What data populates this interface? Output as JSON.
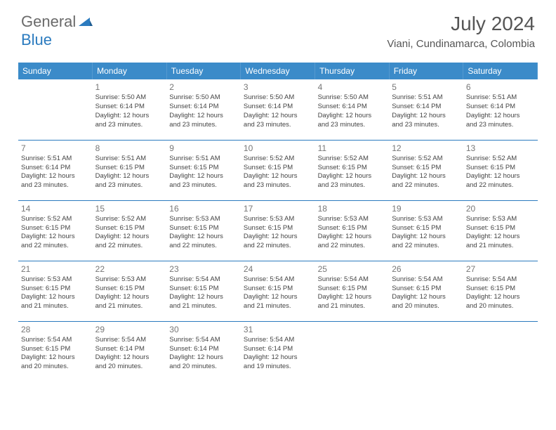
{
  "logo": {
    "word1": "General",
    "word2": "Blue"
  },
  "title": "July 2024",
  "location": "Viani, Cundinamarca, Colombia",
  "colors": {
    "header_bg": "#3b8bc9",
    "border": "#2b7bbf",
    "logo_gray": "#6a6a6a",
    "logo_blue": "#2b7bbf",
    "text": "#444"
  },
  "days_of_week": [
    "Sunday",
    "Monday",
    "Tuesday",
    "Wednesday",
    "Thursday",
    "Friday",
    "Saturday"
  ],
  "weeks": [
    [
      null,
      {
        "n": "1",
        "sr": "Sunrise: 5:50 AM",
        "ss": "Sunset: 6:14 PM",
        "dl1": "Daylight: 12 hours",
        "dl2": "and 23 minutes."
      },
      {
        "n": "2",
        "sr": "Sunrise: 5:50 AM",
        "ss": "Sunset: 6:14 PM",
        "dl1": "Daylight: 12 hours",
        "dl2": "and 23 minutes."
      },
      {
        "n": "3",
        "sr": "Sunrise: 5:50 AM",
        "ss": "Sunset: 6:14 PM",
        "dl1": "Daylight: 12 hours",
        "dl2": "and 23 minutes."
      },
      {
        "n": "4",
        "sr": "Sunrise: 5:50 AM",
        "ss": "Sunset: 6:14 PM",
        "dl1": "Daylight: 12 hours",
        "dl2": "and 23 minutes."
      },
      {
        "n": "5",
        "sr": "Sunrise: 5:51 AM",
        "ss": "Sunset: 6:14 PM",
        "dl1": "Daylight: 12 hours",
        "dl2": "and 23 minutes."
      },
      {
        "n": "6",
        "sr": "Sunrise: 5:51 AM",
        "ss": "Sunset: 6:14 PM",
        "dl1": "Daylight: 12 hours",
        "dl2": "and 23 minutes."
      }
    ],
    [
      {
        "n": "7",
        "sr": "Sunrise: 5:51 AM",
        "ss": "Sunset: 6:14 PM",
        "dl1": "Daylight: 12 hours",
        "dl2": "and 23 minutes."
      },
      {
        "n": "8",
        "sr": "Sunrise: 5:51 AM",
        "ss": "Sunset: 6:15 PM",
        "dl1": "Daylight: 12 hours",
        "dl2": "and 23 minutes."
      },
      {
        "n": "9",
        "sr": "Sunrise: 5:51 AM",
        "ss": "Sunset: 6:15 PM",
        "dl1": "Daylight: 12 hours",
        "dl2": "and 23 minutes."
      },
      {
        "n": "10",
        "sr": "Sunrise: 5:52 AM",
        "ss": "Sunset: 6:15 PM",
        "dl1": "Daylight: 12 hours",
        "dl2": "and 23 minutes."
      },
      {
        "n": "11",
        "sr": "Sunrise: 5:52 AM",
        "ss": "Sunset: 6:15 PM",
        "dl1": "Daylight: 12 hours",
        "dl2": "and 23 minutes."
      },
      {
        "n": "12",
        "sr": "Sunrise: 5:52 AM",
        "ss": "Sunset: 6:15 PM",
        "dl1": "Daylight: 12 hours",
        "dl2": "and 22 minutes."
      },
      {
        "n": "13",
        "sr": "Sunrise: 5:52 AM",
        "ss": "Sunset: 6:15 PM",
        "dl1": "Daylight: 12 hours",
        "dl2": "and 22 minutes."
      }
    ],
    [
      {
        "n": "14",
        "sr": "Sunrise: 5:52 AM",
        "ss": "Sunset: 6:15 PM",
        "dl1": "Daylight: 12 hours",
        "dl2": "and 22 minutes."
      },
      {
        "n": "15",
        "sr": "Sunrise: 5:52 AM",
        "ss": "Sunset: 6:15 PM",
        "dl1": "Daylight: 12 hours",
        "dl2": "and 22 minutes."
      },
      {
        "n": "16",
        "sr": "Sunrise: 5:53 AM",
        "ss": "Sunset: 6:15 PM",
        "dl1": "Daylight: 12 hours",
        "dl2": "and 22 minutes."
      },
      {
        "n": "17",
        "sr": "Sunrise: 5:53 AM",
        "ss": "Sunset: 6:15 PM",
        "dl1": "Daylight: 12 hours",
        "dl2": "and 22 minutes."
      },
      {
        "n": "18",
        "sr": "Sunrise: 5:53 AM",
        "ss": "Sunset: 6:15 PM",
        "dl1": "Daylight: 12 hours",
        "dl2": "and 22 minutes."
      },
      {
        "n": "19",
        "sr": "Sunrise: 5:53 AM",
        "ss": "Sunset: 6:15 PM",
        "dl1": "Daylight: 12 hours",
        "dl2": "and 22 minutes."
      },
      {
        "n": "20",
        "sr": "Sunrise: 5:53 AM",
        "ss": "Sunset: 6:15 PM",
        "dl1": "Daylight: 12 hours",
        "dl2": "and 21 minutes."
      }
    ],
    [
      {
        "n": "21",
        "sr": "Sunrise: 5:53 AM",
        "ss": "Sunset: 6:15 PM",
        "dl1": "Daylight: 12 hours",
        "dl2": "and 21 minutes."
      },
      {
        "n": "22",
        "sr": "Sunrise: 5:53 AM",
        "ss": "Sunset: 6:15 PM",
        "dl1": "Daylight: 12 hours",
        "dl2": "and 21 minutes."
      },
      {
        "n": "23",
        "sr": "Sunrise: 5:54 AM",
        "ss": "Sunset: 6:15 PM",
        "dl1": "Daylight: 12 hours",
        "dl2": "and 21 minutes."
      },
      {
        "n": "24",
        "sr": "Sunrise: 5:54 AM",
        "ss": "Sunset: 6:15 PM",
        "dl1": "Daylight: 12 hours",
        "dl2": "and 21 minutes."
      },
      {
        "n": "25",
        "sr": "Sunrise: 5:54 AM",
        "ss": "Sunset: 6:15 PM",
        "dl1": "Daylight: 12 hours",
        "dl2": "and 21 minutes."
      },
      {
        "n": "26",
        "sr": "Sunrise: 5:54 AM",
        "ss": "Sunset: 6:15 PM",
        "dl1": "Daylight: 12 hours",
        "dl2": "and 20 minutes."
      },
      {
        "n": "27",
        "sr": "Sunrise: 5:54 AM",
        "ss": "Sunset: 6:15 PM",
        "dl1": "Daylight: 12 hours",
        "dl2": "and 20 minutes."
      }
    ],
    [
      {
        "n": "28",
        "sr": "Sunrise: 5:54 AM",
        "ss": "Sunset: 6:15 PM",
        "dl1": "Daylight: 12 hours",
        "dl2": "and 20 minutes."
      },
      {
        "n": "29",
        "sr": "Sunrise: 5:54 AM",
        "ss": "Sunset: 6:14 PM",
        "dl1": "Daylight: 12 hours",
        "dl2": "and 20 minutes."
      },
      {
        "n": "30",
        "sr": "Sunrise: 5:54 AM",
        "ss": "Sunset: 6:14 PM",
        "dl1": "Daylight: 12 hours",
        "dl2": "and 20 minutes."
      },
      {
        "n": "31",
        "sr": "Sunrise: 5:54 AM",
        "ss": "Sunset: 6:14 PM",
        "dl1": "Daylight: 12 hours",
        "dl2": "and 19 minutes."
      },
      null,
      null,
      null
    ]
  ]
}
